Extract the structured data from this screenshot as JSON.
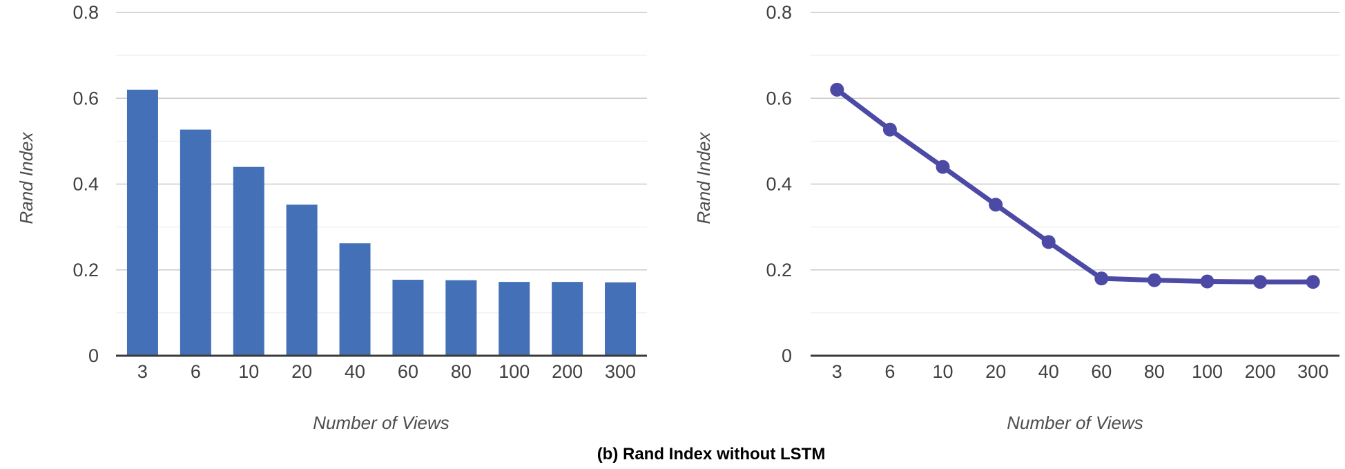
{
  "figure": {
    "caption": "(b) Rand Index without LSTM"
  },
  "colors": {
    "background": "#ffffff",
    "bar": "#4470b7",
    "line": "#4c4aa5",
    "grid_major": "#c9c9c9",
    "grid_minor": "#ececec",
    "axis_line": "#3a3a3a",
    "tick_text": "#404040",
    "axis_title_text": "#4d4d4d",
    "caption_text": "#000000"
  },
  "chart_data": [
    {
      "type": "bar",
      "title": "",
      "categories": [
        "3",
        "6",
        "10",
        "20",
        "40",
        "60",
        "80",
        "100",
        "200",
        "300"
      ],
      "values": [
        0.62,
        0.527,
        0.44,
        0.352,
        0.262,
        0.177,
        0.176,
        0.172,
        0.172,
        0.171
      ],
      "xlabel": "Number of Views",
      "ylabel": "Rand Index",
      "ylim": [
        0,
        0.8
      ],
      "yticks": [
        "0",
        "0.2",
        "0.4",
        "0.6",
        "0.8"
      ],
      "minor_grid_step": 0.1,
      "grid": true,
      "legend": "none",
      "series_color": "#4470b7"
    },
    {
      "type": "line",
      "title": "",
      "categories": [
        "3",
        "6",
        "10",
        "20",
        "40",
        "60",
        "80",
        "100",
        "200",
        "300"
      ],
      "values": [
        0.62,
        0.527,
        0.44,
        0.352,
        0.265,
        0.18,
        0.176,
        0.173,
        0.172,
        0.172
      ],
      "xlabel": "Number of Views",
      "ylabel": "Rand Index",
      "ylim": [
        0,
        0.8
      ],
      "yticks": [
        "0",
        "0.2",
        "0.4",
        "0.6",
        "0.8"
      ],
      "minor_grid_step": 0.1,
      "grid": true,
      "legend": "none",
      "series_color": "#4c4aa5",
      "marker": "circle"
    }
  ]
}
